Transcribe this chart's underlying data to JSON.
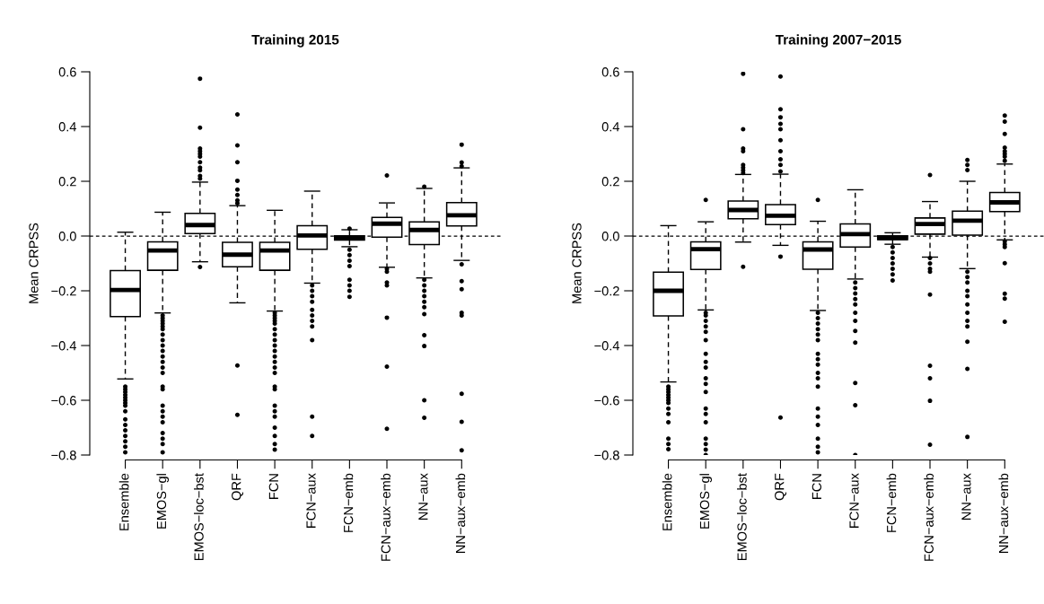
{
  "chart_data": [
    {
      "type": "box",
      "title": "Training 2015",
      "ylabel": "Mean CRPSS",
      "categories": [
        "Ensemble",
        "EMOS−gl",
        "EMOS−loc−bst",
        "QRF",
        "FCN",
        "FCN−aux",
        "FCN−emb",
        "FCN−aux−emb",
        "NN−aux",
        "NN−aux−emb"
      ],
      "ylim": [
        -0.8,
        0.6
      ],
      "yticks": [
        {
          "value": -0.8,
          "label": "−0.8"
        },
        {
          "value": -0.6,
          "label": "−0.6"
        },
        {
          "value": -0.4,
          "label": "−0.4"
        },
        {
          "value": -0.2,
          "label": "−0.2"
        },
        {
          "value": 0,
          "label": "0.0"
        },
        0.2,
        0.4,
        0.6
      ],
      "grid": false,
      "ref_lines": [
        {
          "axis": "y",
          "value": 0,
          "line_style": "dashed",
          "color": "#000000"
        }
      ],
      "boxes": [
        {
          "low": -0.522,
          "q1": -0.294,
          "median": -0.197,
          "q3": -0.126,
          "high": 0.014,
          "outliers": [
            -0.55,
            -0.56,
            -0.57,
            -0.58,
            -0.59,
            -0.6,
            -0.61,
            -0.62,
            -0.64,
            -0.67,
            -0.69,
            -0.71,
            -0.73,
            -0.75,
            -0.77,
            -0.79
          ]
        },
        {
          "low": -0.281,
          "q1": -0.125,
          "median": -0.053,
          "q3": -0.021,
          "high": 0.087,
          "outliers": [
            -0.29,
            -0.3,
            -0.31,
            -0.32,
            -0.33,
            -0.34,
            -0.36,
            -0.38,
            -0.4,
            -0.42,
            -0.44,
            -0.46,
            -0.48,
            -0.5,
            -0.55,
            -0.56,
            -0.62,
            -0.64,
            -0.66,
            -0.68,
            -0.72,
            -0.74,
            -0.76,
            -0.79
          ]
        },
        {
          "low": -0.094,
          "q1": 0.009,
          "median": 0.04,
          "q3": 0.083,
          "high": 0.197,
          "outliers": [
            0.575,
            0.396,
            0.32,
            0.31,
            0.3,
            0.29,
            0.27,
            0.25,
            0.24,
            0.22,
            0.21,
            -0.113
          ]
        },
        {
          "low": -0.244,
          "q1": -0.112,
          "median": -0.068,
          "q3": -0.023,
          "high": 0.111,
          "outliers": [
            0.444,
            0.331,
            0.27,
            0.202,
            0.17,
            0.15,
            0.13,
            0.12,
            -0.473,
            -0.653
          ]
        },
        {
          "low": -0.274,
          "q1": -0.125,
          "median": -0.053,
          "q3": -0.023,
          "high": 0.094,
          "outliers": [
            -0.28,
            -0.29,
            -0.3,
            -0.31,
            -0.32,
            -0.34,
            -0.36,
            -0.38,
            -0.4,
            -0.42,
            -0.44,
            -0.46,
            -0.48,
            -0.5,
            -0.55,
            -0.56,
            -0.62,
            -0.64,
            -0.66,
            -0.7,
            -0.73,
            -0.76,
            -0.78
          ]
        },
        {
          "low": -0.172,
          "q1": -0.048,
          "median": 0.002,
          "q3": 0.038,
          "high": 0.164,
          "outliers": [
            -0.18,
            -0.2,
            -0.22,
            -0.24,
            -0.27,
            -0.29,
            -0.31,
            -0.33,
            -0.38,
            -0.66,
            -0.73
          ]
        },
        {
          "low": -0.039,
          "q1": -0.015,
          "median": -0.008,
          "q3": 0.001,
          "high": 0.023,
          "outliers": [
            0.027,
            -0.05,
            -0.07,
            -0.09,
            -0.11,
            -0.16,
            -0.18,
            -0.2,
            -0.222
          ]
        },
        {
          "low": -0.114,
          "q1": -0.004,
          "median": 0.045,
          "q3": 0.068,
          "high": 0.121,
          "outliers": [
            0.221,
            -0.12,
            -0.13,
            -0.17,
            -0.18,
            -0.298,
            -0.477,
            -0.704
          ]
        },
        {
          "low": -0.153,
          "q1": -0.031,
          "median": 0.022,
          "q3": 0.052,
          "high": 0.174,
          "outliers": [
            0.18,
            -0.16,
            -0.18,
            -0.2,
            -0.22,
            -0.24,
            -0.26,
            -0.285,
            -0.362,
            -0.402,
            -0.6,
            -0.664
          ]
        },
        {
          "low": -0.089,
          "q1": 0.037,
          "median": 0.076,
          "q3": 0.122,
          "high": 0.249,
          "outliers": [
            0.334,
            0.269,
            0.255,
            -0.103,
            -0.165,
            -0.194,
            -0.28,
            -0.29,
            -0.576,
            -0.679,
            -0.783
          ]
        }
      ]
    },
    {
      "type": "box",
      "title": "Training 2007−2015",
      "ylabel": "Mean CRPSS",
      "categories": [
        "Ensemble",
        "EMOS−gl",
        "EMOS−loc−bst",
        "QRF",
        "FCN",
        "FCN−aux",
        "FCN−emb",
        "FCN−aux−emb",
        "NN−aux",
        "NN−aux−emb"
      ],
      "ylim": [
        -0.8,
        0.6
      ],
      "yticks": [
        {
          "value": -0.8,
          "label": "−0.8"
        },
        {
          "value": -0.6,
          "label": "−0.6"
        },
        {
          "value": -0.4,
          "label": "−0.4"
        },
        {
          "value": -0.2,
          "label": "−0.2"
        },
        {
          "value": 0,
          "label": "0.0"
        },
        0.2,
        0.4,
        0.6
      ],
      "grid": false,
      "ref_lines": [
        {
          "axis": "y",
          "value": 0,
          "line_style": "dashed",
          "color": "#000000"
        }
      ],
      "boxes": [
        {
          "low": -0.533,
          "q1": -0.292,
          "median": -0.2,
          "q3": -0.132,
          "high": 0.038,
          "outliers": [
            -0.55,
            -0.56,
            -0.57,
            -0.58,
            -0.59,
            -0.6,
            -0.61,
            -0.63,
            -0.65,
            -0.68,
            -0.74,
            -0.76,
            -0.779
          ]
        },
        {
          "low": -0.27,
          "q1": -0.122,
          "median": -0.048,
          "q3": -0.021,
          "high": 0.052,
          "outliers": [
            0.132,
            -0.28,
            -0.29,
            -0.31,
            -0.33,
            -0.35,
            -0.38,
            -0.43,
            -0.46,
            -0.48,
            -0.52,
            -0.54,
            -0.57,
            -0.63,
            -0.65,
            -0.68,
            -0.74,
            -0.76,
            -0.78,
            -0.8
          ]
        },
        {
          "low": -0.022,
          "q1": 0.063,
          "median": 0.095,
          "q3": 0.128,
          "high": 0.225,
          "outliers": [
            0.593,
            0.39,
            0.32,
            0.31,
            0.26,
            0.25,
            0.24,
            0.23,
            -0.112
          ]
        },
        {
          "low": -0.034,
          "q1": 0.042,
          "median": 0.074,
          "q3": 0.115,
          "high": 0.226,
          "outliers": [
            0.583,
            0.463,
            0.434,
            0.41,
            0.39,
            0.35,
            0.31,
            0.28,
            0.26,
            0.236,
            -0.075,
            -0.663
          ]
        },
        {
          "low": -0.272,
          "q1": -0.121,
          "median": -0.049,
          "q3": -0.021,
          "high": 0.054,
          "outliers": [
            0.132,
            -0.28,
            -0.3,
            -0.32,
            -0.34,
            -0.36,
            -0.38,
            -0.43,
            -0.45,
            -0.47,
            -0.5,
            -0.52,
            -0.55,
            -0.63,
            -0.66,
            -0.69,
            -0.74,
            -0.77,
            -0.79
          ]
        },
        {
          "low": -0.157,
          "q1": -0.04,
          "median": 0.007,
          "q3": 0.044,
          "high": 0.169,
          "outliers": [
            -0.17,
            -0.19,
            -0.21,
            -0.23,
            -0.25,
            -0.28,
            -0.31,
            -0.347,
            -0.389,
            -0.537,
            -0.618,
            -0.8
          ]
        },
        {
          "low": -0.03,
          "q1": -0.013,
          "median": -0.007,
          "q3": 0.001,
          "high": 0.012,
          "outliers": [
            -0.04,
            -0.06,
            -0.08,
            -0.1,
            -0.12,
            -0.14,
            -0.162
          ]
        },
        {
          "low": -0.077,
          "q1": 0.007,
          "median": 0.044,
          "q3": 0.066,
          "high": 0.126,
          "outliers": [
            0.223,
            -0.08,
            -0.1,
            -0.12,
            -0.13,
            -0.214,
            -0.474,
            -0.52,
            -0.602,
            -0.762
          ]
        },
        {
          "low": -0.119,
          "q1": 0.003,
          "median": 0.056,
          "q3": 0.091,
          "high": 0.2,
          "outliers": [
            0.278,
            0.26,
            0.241,
            -0.13,
            -0.15,
            -0.17,
            -0.2,
            -0.22,
            -0.25,
            -0.28,
            -0.31,
            -0.33,
            -0.386,
            -0.485,
            -0.734
          ]
        },
        {
          "low": -0.014,
          "q1": 0.089,
          "median": 0.123,
          "q3": 0.159,
          "high": 0.263,
          "outliers": [
            0.44,
            0.418,
            0.373,
            0.323,
            0.31,
            0.3,
            0.29,
            0.275,
            -0.02,
            -0.03,
            -0.04,
            -0.099,
            -0.211,
            -0.229,
            -0.313
          ]
        }
      ]
    }
  ]
}
